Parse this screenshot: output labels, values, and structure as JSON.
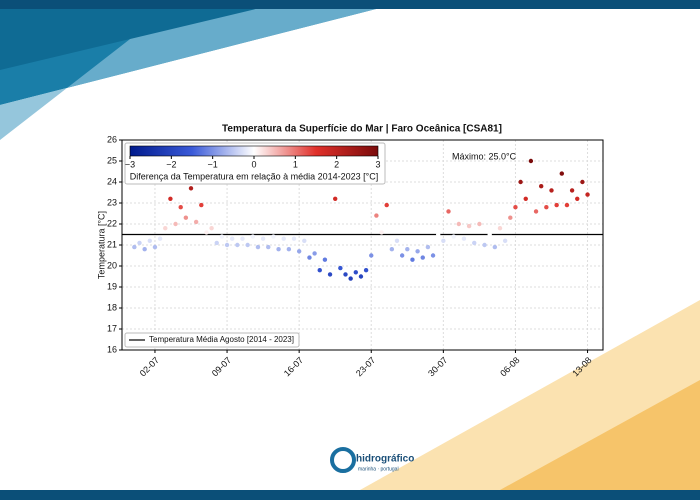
{
  "chart_data": {
    "type": "scatter",
    "title": "Temperatura da Superfície do Mar | Faro Oceânica [CSA81]",
    "ylabel": "Temperatura [°C]",
    "annotation": "Máximo: 25.0°C",
    "x": [
      -1,
      -0.5,
      0,
      0.5,
      1,
      1.5,
      2,
      2.5,
      3,
      3.5,
      4,
      4.5,
      5,
      5.5,
      6,
      6.5,
      7,
      7.5,
      8,
      8.5,
      9,
      9.5,
      10,
      10.5,
      11,
      11.5,
      12,
      12.5,
      13,
      13.5,
      14,
      14.5,
      15,
      15.5,
      16,
      16.5,
      17,
      17.5,
      18,
      18.5,
      19,
      19.5,
      20,
      20.5,
      21,
      21.5,
      22,
      22.5,
      23,
      23.5,
      24,
      24.5,
      25,
      25.5,
      26,
      26.5,
      27,
      27.5,
      28,
      28.5,
      29,
      29.5,
      30,
      30.5,
      31,
      31.5,
      32,
      32.5,
      33,
      33.5,
      34,
      34.5,
      35,
      35.5,
      36,
      36.5,
      37,
      37.5,
      38,
      38.5,
      39,
      39.5,
      40,
      40.5,
      41,
      41.5,
      42,
      42.5,
      43
    ],
    "values": [
      20.9,
      21.1,
      20.8,
      21.2,
      20.9,
      21.3,
      21.8,
      23.2,
      22.0,
      22.8,
      22.3,
      23.7,
      22.1,
      22.9,
      21.6,
      21.8,
      21.1,
      21.4,
      21.0,
      21.3,
      21.0,
      21.3,
      21.0,
      21.4,
      20.9,
      21.3,
      20.9,
      21.4,
      20.8,
      21.3,
      20.8,
      21.3,
      20.7,
      21.2,
      20.4,
      20.6,
      19.8,
      20.3,
      19.6,
      23.2,
      19.9,
      19.6,
      19.4,
      19.7,
      19.5,
      19.8,
      20.5,
      22.4,
      21.6,
      22.9,
      20.8,
      21.2,
      20.5,
      20.8,
      20.3,
      20.7,
      20.4,
      20.9,
      20.5,
      21.5,
      21.2,
      22.6,
      21.4,
      22.0,
      21.3,
      21.9,
      21.1,
      22.0,
      21.0,
      21.5,
      20.9,
      21.8,
      21.2,
      22.3,
      22.8,
      24.0,
      23.2,
      25.0,
      22.6,
      23.8,
      22.8,
      23.6,
      22.9,
      24.4,
      22.9,
      23.6,
      23.2,
      24.0,
      23.4
    ],
    "xlim": [
      -2.2,
      44.5
    ],
    "xticks": [
      {
        "value": 1,
        "label": "02-07"
      },
      {
        "value": 8,
        "label": "09-07"
      },
      {
        "value": 15,
        "label": "16-07"
      },
      {
        "value": 22,
        "label": "23-07"
      },
      {
        "value": 29,
        "label": "30-07"
      },
      {
        "value": 36,
        "label": "06-08"
      },
      {
        "value": 43,
        "label": "13-08"
      }
    ],
    "ylim": [
      16,
      26
    ],
    "yticks": [
      16,
      17,
      18,
      19,
      20,
      21,
      22,
      23,
      24,
      25,
      26
    ],
    "grid": true,
    "mean_line": {
      "name": "Temperatura Média Agosto [2014 - 2023]",
      "value": 21.5,
      "color": "#000000"
    },
    "colorbar": {
      "label": "Diferença da Temperatura em relação à média 2014-2023 [°C]",
      "lim": [
        -3,
        3
      ],
      "ticks": [
        {
          "value": -3,
          "label": "−3"
        },
        {
          "value": -2,
          "label": "−2"
        },
        {
          "value": -1,
          "label": "−1"
        },
        0,
        1,
        2,
        3
      ],
      "colormap": [
        "#001a8c",
        "#3a5ad8",
        "#ffffff",
        "#e0302a",
        "#7a0b0b"
      ]
    }
  },
  "footer": {
    "logo": "hidrográfico",
    "sublogo": "marinha · portugal"
  }
}
